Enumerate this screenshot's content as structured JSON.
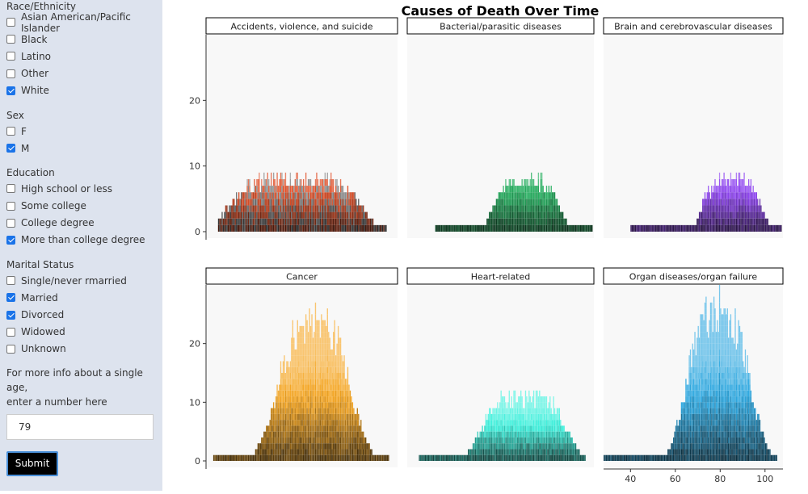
{
  "sidebar": {
    "race": {
      "title": "Race/Ethnicity",
      "options": [
        {
          "label": "Asian American/Pacific Islander",
          "checked": false
        },
        {
          "label": "Black",
          "checked": false
        },
        {
          "label": "Latino",
          "checked": false
        },
        {
          "label": "Other",
          "checked": false
        },
        {
          "label": "White",
          "checked": true
        }
      ]
    },
    "sex": {
      "title": "Sex",
      "options": [
        {
          "label": "F",
          "checked": false
        },
        {
          "label": "M",
          "checked": true
        }
      ]
    },
    "education": {
      "title": "Education",
      "options": [
        {
          "label": "High school or less",
          "checked": false
        },
        {
          "label": "Some college",
          "checked": false
        },
        {
          "label": "College degree",
          "checked": false
        },
        {
          "label": "More than college degree",
          "checked": true
        }
      ]
    },
    "marital": {
      "title": "Marital Status",
      "options": [
        {
          "label": "Single/never rmarried",
          "checked": false
        },
        {
          "label": "Married",
          "checked": true
        },
        {
          "label": "Divorced",
          "checked": true
        },
        {
          "label": "Widowed",
          "checked": false
        },
        {
          "label": "Unknown",
          "checked": false
        }
      ]
    },
    "info_line1": "For more info about a single age,",
    "info_line2": "enter a number here",
    "age_value": "79",
    "submit_label": "Submit"
  },
  "chart_data": {
    "type": "bar",
    "title": "Causes of Death Over Time",
    "xlabel": "",
    "ylabel": "",
    "ylim": [
      0,
      30
    ],
    "xlim": [
      28,
      108
    ],
    "x_ticks": [
      40,
      60,
      80,
      100
    ],
    "y_ticks": [
      0,
      10,
      20
    ],
    "panels": [
      {
        "name": "Accidents, violence, and suicide",
        "color": "#e0512a",
        "alt_color": "#8a8a8a",
        "x_start": 33,
        "x_end": 103,
        "peak_age": 65,
        "spread": 26,
        "peak": 8,
        "flatness": 3
      },
      {
        "name": "Bacterial/parasitic diseases",
        "color": "#27ae60",
        "x_start": 40,
        "x_end": 107,
        "peak_age": 79,
        "spread": 13,
        "peak": 8,
        "flatness": 2
      },
      {
        "name": "Brain and cerebrovascular diseases",
        "color": "#8e44f0",
        "x_start": 40,
        "x_end": 107,
        "peak_age": 85,
        "spread": 12,
        "peak": 8,
        "flatness": 2
      },
      {
        "name": "Cancer",
        "color": "#f5a623",
        "x_start": 31,
        "x_end": 104,
        "peak_age": 73,
        "spread": 14,
        "peak": 24,
        "flatness": 1
      },
      {
        "name": "Heart-related",
        "color": "#3ff0dc",
        "x_start": 33,
        "x_end": 104,
        "peak_age": 78,
        "spread": 17,
        "peak": 11,
        "flatness": 2
      },
      {
        "name": "Organ diseases/organ failure",
        "color": "#2ea8e0",
        "x_start": 28,
        "x_end": 105,
        "peak_age": 79,
        "spread": 13,
        "peak": 26,
        "flatness": 1
      }
    ]
  }
}
